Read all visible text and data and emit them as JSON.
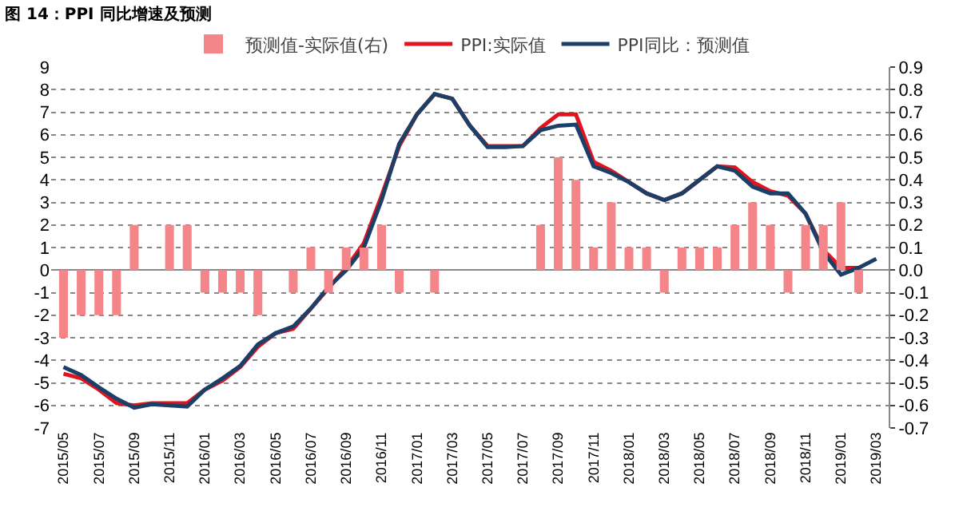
{
  "chart_data": {
    "type": "line",
    "title": "图 14：PPI 同比增速及预测",
    "categories": [
      "2015/05",
      null,
      "2015/07",
      null,
      "2015/09",
      null,
      "2015/11",
      null,
      "2016/01",
      null,
      "2016/03",
      null,
      "2016/05",
      null,
      "2016/07",
      null,
      "2016/09",
      null,
      "2016/11",
      null,
      "2017/01",
      null,
      "2017/03",
      null,
      "2017/05",
      null,
      "2017/07",
      null,
      "2017/09",
      null,
      "2017/11",
      null,
      "2018/01",
      null,
      "2018/03",
      null,
      "2018/05",
      null,
      "2018/07",
      null,
      "2018/09",
      null,
      "2018/11",
      null,
      "2019/01",
      null,
      "2019/03"
    ],
    "series": [
      {
        "name": "预测值-实际值(右)",
        "type": "bar",
        "axis": "y2",
        "color": "#f4868a",
        "values": [
          -0.3,
          -0.2,
          -0.2,
          -0.2,
          0.2,
          null,
          0.2,
          0.2,
          -0.1,
          -0.1,
          -0.1,
          -0.2,
          null,
          -0.1,
          0.1,
          -0.1,
          0.1,
          0.1,
          0.2,
          -0.1,
          null,
          -0.1,
          null,
          null,
          null,
          null,
          null,
          0.2,
          0.5,
          0.4,
          0.1,
          0.3,
          0.1,
          0.1,
          -0.1,
          0.1,
          0.1,
          0.1,
          0.2,
          0.3,
          0.2,
          -0.1,
          0.2,
          0.2,
          0.3,
          -0.1,
          null
        ]
      },
      {
        "name": "PPI:实际值",
        "color": "#e0141e",
        "values": [
          -4.6,
          -4.8,
          -5.3,
          -5.9,
          -6.0,
          -5.9,
          -5.9,
          -5.9,
          -5.3,
          -4.9,
          -4.3,
          -3.4,
          -2.8,
          -2.6,
          -1.7,
          -0.8,
          0.1,
          1.2,
          3.3,
          5.5,
          6.9,
          7.8,
          7.6,
          6.4,
          5.5,
          5.5,
          5.5,
          6.3,
          6.9,
          6.9,
          4.8,
          4.4,
          3.9,
          3.4,
          3.1,
          3.4,
          4.0,
          4.6,
          4.55,
          3.9,
          3.5,
          3.3,
          2.5,
          0.9,
          0.1,
          0.1,
          null
        ]
      },
      {
        "name": "PPI同比：预测值",
        "color": "#1b3f66",
        "values": [
          -4.3,
          -4.65,
          -5.2,
          -5.7,
          -6.1,
          -5.95,
          -6.0,
          -6.05,
          -5.3,
          -4.8,
          -4.25,
          -3.3,
          -2.8,
          -2.5,
          -1.7,
          -0.75,
          0.0,
          1.0,
          3.1,
          5.6,
          6.9,
          7.8,
          7.6,
          6.4,
          5.45,
          5.45,
          5.5,
          6.2,
          6.4,
          6.45,
          4.6,
          4.3,
          3.9,
          3.4,
          3.1,
          3.4,
          4.0,
          4.6,
          4.4,
          3.7,
          3.4,
          3.4,
          2.5,
          0.8,
          -0.2,
          0.1,
          0.5
        ]
      }
    ],
    "ylim": [
      -7,
      9
    ],
    "yticks": [
      -7,
      -6,
      -5,
      -4,
      -3,
      -2,
      -1,
      0,
      1,
      2,
      3,
      4,
      5,
      6,
      7,
      8,
      9
    ],
    "y2lim": [
      -0.7,
      0.9
    ],
    "y2ticks": [
      {
        "value": -0.7,
        "label": "-0.7"
      },
      {
        "value": -0.6,
        "label": "-0.6"
      },
      {
        "value": -0.5,
        "label": "-0.5"
      },
      {
        "value": -0.4,
        "label": "-0.4"
      },
      {
        "value": -0.3,
        "label": "-0.3"
      },
      {
        "value": -0.2,
        "label": "-0.2"
      },
      {
        "value": -0.1,
        "label": "-0.1"
      },
      {
        "value": 0,
        "label": "0.0"
      },
      {
        "value": 0.1,
        "label": "0.1"
      },
      {
        "value": 0.2,
        "label": "0.2"
      },
      {
        "value": 0.3,
        "label": "0.3"
      },
      {
        "value": 0.4,
        "label": "0.4"
      },
      {
        "value": 0.5,
        "label": "0.5"
      },
      {
        "value": 0.6,
        "label": "0.6"
      },
      {
        "value": 0.7,
        "label": "0.7"
      },
      {
        "value": 0.8,
        "label": "0.8"
      },
      {
        "value": 0.9,
        "label": "0.9"
      }
    ],
    "grid": "y",
    "legend": "top"
  }
}
